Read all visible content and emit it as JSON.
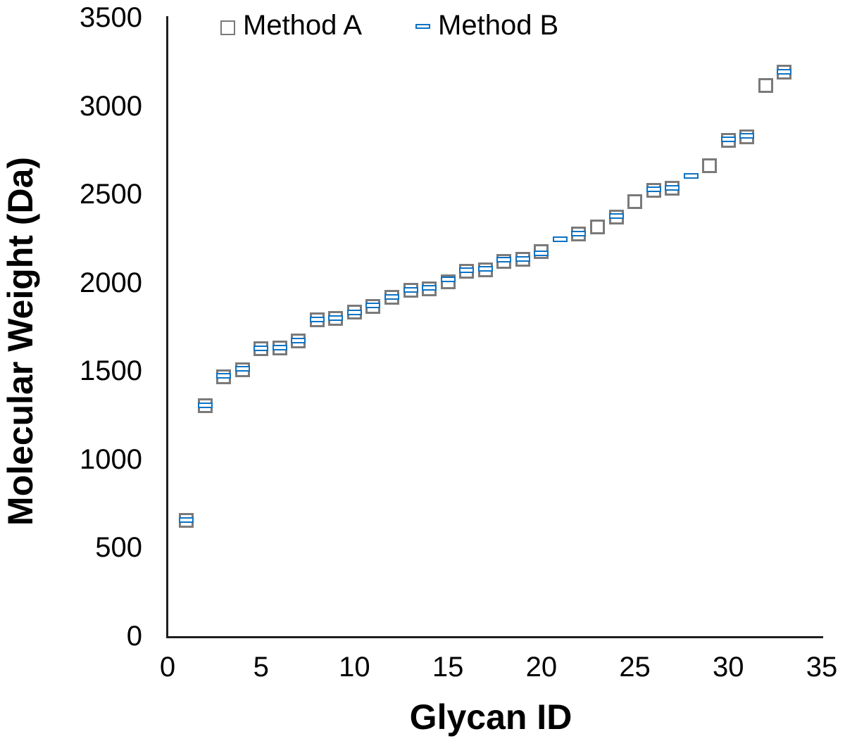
{
  "chart_data": {
    "type": "scatter",
    "title": "",
    "xlabel": "Glycan ID",
    "ylabel": "Molecular Weight (Da)",
    "xlim": [
      0,
      35
    ],
    "ylim": [
      0,
      3500
    ],
    "x_ticks": [
      0,
      5,
      10,
      15,
      20,
      25,
      30,
      35
    ],
    "y_ticks": [
      0,
      500,
      1000,
      1500,
      2000,
      2500,
      3000,
      3500
    ],
    "grid": false,
    "legend_position": "top",
    "colors": {
      "method_a": "#7a7a7a",
      "method_b": "#0d72c4",
      "axis": "#1f1f1f",
      "text": "#000000"
    },
    "series": [
      {
        "name": "Method A",
        "marker": "open-square",
        "color": "#7a7a7a",
        "points": [
          [
            1,
            655
          ],
          [
            2,
            1305
          ],
          [
            3,
            1468
          ],
          [
            4,
            1508
          ],
          [
            5,
            1626
          ],
          [
            6,
            1629
          ],
          [
            7,
            1671
          ],
          [
            8,
            1790
          ],
          [
            9,
            1799
          ],
          [
            10,
            1832
          ],
          [
            11,
            1867
          ],
          [
            12,
            1919
          ],
          [
            13,
            1956
          ],
          [
            14,
            1965
          ],
          [
            15,
            2005
          ],
          [
            16,
            2065
          ],
          [
            17,
            2074
          ],
          [
            18,
            2122
          ],
          [
            19,
            2131
          ],
          [
            20,
            2175
          ],
          [
            22,
            2277
          ],
          [
            23,
            2317
          ],
          [
            24,
            2370
          ],
          [
            25,
            2457
          ],
          [
            26,
            2523
          ],
          [
            27,
            2536
          ],
          [
            29,
            2660
          ],
          [
            30,
            2806
          ],
          [
            31,
            2825
          ],
          [
            32,
            3116
          ],
          [
            33,
            3191
          ]
        ]
      },
      {
        "name": "Method B",
        "marker": "dash",
        "color": "#0d72c4",
        "points": [
          [
            1,
            656
          ],
          [
            2,
            1306
          ],
          [
            3,
            1472
          ],
          [
            4,
            1513
          ],
          [
            5,
            1628
          ],
          [
            6,
            1631
          ],
          [
            7,
            1673
          ],
          [
            8,
            1793
          ],
          [
            9,
            1801
          ],
          [
            10,
            1833
          ],
          [
            11,
            1872
          ],
          [
            12,
            1921
          ],
          [
            13,
            1958
          ],
          [
            14,
            1970
          ],
          [
            15,
            2020
          ],
          [
            16,
            2072
          ],
          [
            17,
            2077
          ],
          [
            18,
            2130
          ],
          [
            19,
            2133
          ],
          [
            20,
            2168
          ],
          [
            21,
            2244
          ],
          [
            22,
            2278
          ],
          [
            24,
            2378
          ],
          [
            26,
            2527
          ],
          [
            27,
            2538
          ],
          [
            28,
            2605
          ],
          [
            30,
            2812
          ],
          [
            31,
            2830
          ],
          [
            33,
            3193
          ]
        ]
      }
    ]
  }
}
